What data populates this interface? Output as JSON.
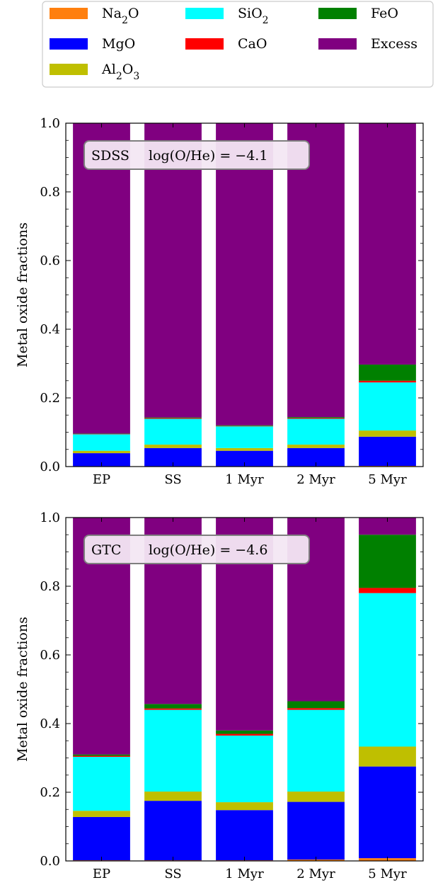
{
  "legend": {
    "items": [
      {
        "key": "Na2O",
        "base": "Na",
        "sub": "2",
        "tail": "O",
        "color": "#ff7f0e"
      },
      {
        "key": "SiO2",
        "base": "SiO",
        "sub": "2",
        "tail": "",
        "color": "#00ffff"
      },
      {
        "key": "FeO",
        "base": "FeO",
        "sub": "",
        "tail": "",
        "color": "#008000"
      },
      {
        "key": "MgO",
        "base": "MgO",
        "sub": "",
        "tail": "",
        "color": "#0000ff"
      },
      {
        "key": "CaO",
        "base": "CaO",
        "sub": "",
        "tail": "",
        "color": "#ff0000"
      },
      {
        "key": "Excess",
        "base": "Excess",
        "sub": "",
        "tail": "",
        "color": "#800080"
      },
      {
        "key": "Al2O3",
        "base": "Al",
        "sub": "2",
        "tail": "O",
        "sub2": "3",
        "color": "#bfbf00"
      }
    ]
  },
  "chart_data": [
    {
      "type": "bar",
      "stacked": true,
      "panel_label": "SDSS",
      "annotation": "log(O/He) = −4.1",
      "ylabel": "Metal oxide fractions",
      "xlabel": "",
      "ylim": [
        0,
        1
      ],
      "yticks": [
        "0.0",
        "0.2",
        "0.4",
        "0.6",
        "0.8",
        "1.0"
      ],
      "categories": [
        "EP",
        "SS",
        "1 Myr",
        "2 Myr",
        "5 Myr"
      ],
      "series": [
        {
          "name": "Na2O",
          "values": [
            0.001,
            0.001,
            0.001,
            0.001,
            0.002
          ]
        },
        {
          "name": "MgO",
          "values": [
            0.038,
            0.053,
            0.045,
            0.053,
            0.085
          ]
        },
        {
          "name": "Al2O3",
          "values": [
            0.007,
            0.01,
            0.008,
            0.01,
            0.018
          ]
        },
        {
          "name": "SiO2",
          "values": [
            0.048,
            0.075,
            0.063,
            0.075,
            0.14
          ]
        },
        {
          "name": "CaO",
          "values": [
            0.001,
            0.002,
            0.001,
            0.002,
            0.005
          ]
        },
        {
          "name": "FeO",
          "values": [
            0.001,
            0.002,
            0.002,
            0.003,
            0.047
          ]
        },
        {
          "name": "Excess",
          "values": [
            0.904,
            0.857,
            0.88,
            0.856,
            0.703
          ]
        }
      ]
    },
    {
      "type": "bar",
      "stacked": true,
      "panel_label": "GTC",
      "annotation": "log(O/He) = −4.6",
      "ylabel": "Metal oxide fractions",
      "xlabel": "",
      "ylim": [
        0,
        1
      ],
      "yticks": [
        "0.0",
        "0.2",
        "0.4",
        "0.6",
        "0.8",
        "1.0"
      ],
      "categories": [
        "EP",
        "SS",
        "1 Myr",
        "2 Myr",
        "5 Myr"
      ],
      "series": [
        {
          "name": "Na2O",
          "values": [
            0.002,
            0.002,
            0.002,
            0.004,
            0.008
          ]
        },
        {
          "name": "MgO",
          "values": [
            0.126,
            0.173,
            0.146,
            0.168,
            0.267
          ]
        },
        {
          "name": "Al2O3",
          "values": [
            0.018,
            0.027,
            0.023,
            0.03,
            0.058
          ]
        },
        {
          "name": "SiO2",
          "values": [
            0.157,
            0.238,
            0.194,
            0.238,
            0.447
          ]
        },
        {
          "name": "CaO",
          "values": [
            0.003,
            0.004,
            0.005,
            0.005,
            0.015
          ]
        },
        {
          "name": "FeO",
          "values": [
            0.004,
            0.013,
            0.01,
            0.02,
            0.155
          ]
        },
        {
          "name": "Excess",
          "values": [
            0.69,
            0.543,
            0.62,
            0.535,
            0.05
          ]
        }
      ]
    }
  ]
}
